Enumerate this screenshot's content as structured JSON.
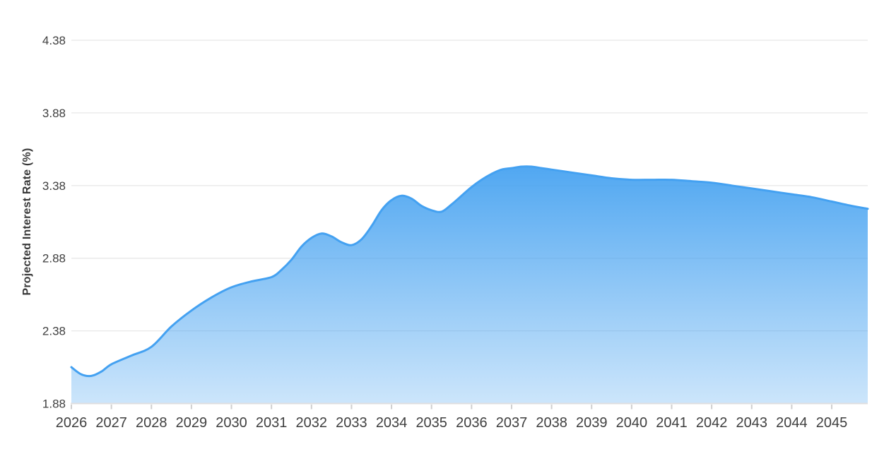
{
  "chart_data": {
    "type": "area",
    "title": "",
    "xlabel": "",
    "ylabel": "Projected Interest Rate (%)",
    "x_tick_labels": [
      "2026",
      "2027",
      "2028",
      "2029",
      "2030",
      "2031",
      "2032",
      "2033",
      "2034",
      "2035",
      "2036",
      "2037",
      "2038",
      "2039",
      "2040",
      "2041",
      "2042",
      "2043",
      "2044",
      "2045"
    ],
    "y_tick_labels": [
      "1.88",
      "2.38",
      "2.88",
      "3.38",
      "3.88",
      "4.38"
    ],
    "y_ticks": [
      1.88,
      2.38,
      2.88,
      3.38,
      3.88,
      4.38
    ],
    "ylim": [
      1.88,
      4.38
    ],
    "xlim": [
      2026,
      2045.9
    ],
    "grid": "horizontal-only",
    "legend": "none",
    "colors": {
      "line": "#44a1f1",
      "fill_base": "#42a0f0",
      "fill_top_opacity": 0.93,
      "fill_bottom_opacity": 0.27,
      "gridline": "#e8e8e8",
      "axis_line": "#dfdfdf",
      "tick_mark": "#cfcfcf",
      "tick_text": "#3f3f3f",
      "axis_title_text": "#383838"
    },
    "series": [
      {
        "name": "Projected Interest Rate",
        "points": [
          [
            2026.0,
            2.13
          ],
          [
            2026.25,
            2.08
          ],
          [
            2026.5,
            2.07
          ],
          [
            2026.75,
            2.1
          ],
          [
            2027.0,
            2.15
          ],
          [
            2027.5,
            2.21
          ],
          [
            2028.0,
            2.27
          ],
          [
            2028.5,
            2.41
          ],
          [
            2029.0,
            2.52
          ],
          [
            2029.5,
            2.61
          ],
          [
            2030.0,
            2.68
          ],
          [
            2030.5,
            2.72
          ],
          [
            2031.0,
            2.75
          ],
          [
            2031.25,
            2.8
          ],
          [
            2031.5,
            2.87
          ],
          [
            2031.75,
            2.96
          ],
          [
            2032.0,
            3.02
          ],
          [
            2032.25,
            3.05
          ],
          [
            2032.5,
            3.03
          ],
          [
            2032.75,
            2.99
          ],
          [
            2033.0,
            2.97
          ],
          [
            2033.25,
            3.01
          ],
          [
            2033.5,
            3.1
          ],
          [
            2033.75,
            3.21
          ],
          [
            2034.0,
            3.28
          ],
          [
            2034.25,
            3.31
          ],
          [
            2034.5,
            3.29
          ],
          [
            2034.75,
            3.24
          ],
          [
            2035.0,
            3.21
          ],
          [
            2035.25,
            3.2
          ],
          [
            2035.5,
            3.25
          ],
          [
            2035.75,
            3.31
          ],
          [
            2036.0,
            3.37
          ],
          [
            2036.25,
            3.42
          ],
          [
            2036.5,
            3.46
          ],
          [
            2036.75,
            3.49
          ],
          [
            2037.0,
            3.5
          ],
          [
            2037.25,
            3.51
          ],
          [
            2037.5,
            3.51
          ],
          [
            2037.75,
            3.5
          ],
          [
            2038.0,
            3.49
          ],
          [
            2038.5,
            3.47
          ],
          [
            2039.0,
            3.45
          ],
          [
            2039.5,
            3.43
          ],
          [
            2040.0,
            3.42
          ],
          [
            2040.5,
            3.42
          ],
          [
            2041.0,
            3.42
          ],
          [
            2041.5,
            3.41
          ],
          [
            2042.0,
            3.4
          ],
          [
            2042.5,
            3.38
          ],
          [
            2043.0,
            3.36
          ],
          [
            2043.5,
            3.34
          ],
          [
            2044.0,
            3.32
          ],
          [
            2044.5,
            3.3
          ],
          [
            2045.0,
            3.27
          ],
          [
            2045.5,
            3.24
          ],
          [
            2045.9,
            3.22
          ]
        ]
      }
    ]
  }
}
